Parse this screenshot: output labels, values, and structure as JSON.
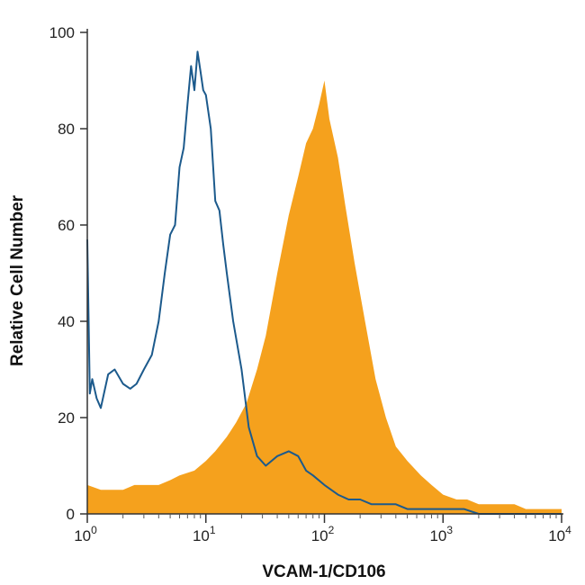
{
  "chart_data": {
    "type": "area",
    "xscale": "log",
    "xlim": [
      1,
      10000
    ],
    "ylim": [
      0,
      100
    ],
    "xlabel": "VCAM-1/CD106",
    "ylabel": "Relative Cell Number",
    "grid": false,
    "legend": "none",
    "y_ticks": [
      "0",
      "20",
      "40",
      "60",
      "80",
      "100"
    ],
    "x_ticks": [
      {
        "base": "10",
        "exp": "0"
      },
      {
        "base": "10",
        "exp": "1"
      },
      {
        "base": "10",
        "exp": "2"
      },
      {
        "base": "10",
        "exp": "3"
      },
      {
        "base": "10",
        "exp": "4"
      }
    ],
    "series": [
      {
        "style": "filled",
        "color": "#f5a11d",
        "x": [
          1,
          1.3,
          1.6,
          2,
          2.5,
          3,
          4,
          5,
          6,
          8,
          10,
          12,
          15,
          18,
          22,
          27,
          32,
          40,
          50,
          60,
          70,
          80,
          90,
          100,
          110,
          130,
          150,
          180,
          220,
          270,
          330,
          400,
          500,
          650,
          800,
          1000,
          1300,
          1600,
          2000,
          2500,
          3000,
          4000,
          5000,
          6000,
          7000,
          8000,
          10000
        ],
        "y": [
          6,
          5,
          5,
          5,
          6,
          6,
          6,
          7,
          8,
          9,
          11,
          13,
          16,
          19,
          23,
          30,
          37,
          50,
          62,
          70,
          77,
          80,
          85,
          90,
          82,
          74,
          64,
          52,
          40,
          28,
          20,
          14,
          11,
          8,
          6,
          4,
          3,
          3,
          2,
          2,
          2,
          2,
          1,
          1,
          1,
          1,
          1
        ]
      },
      {
        "style": "line",
        "color": "#1c5a8c",
        "x": [
          1,
          1.05,
          1.1,
          1.2,
          1.3,
          1.5,
          1.7,
          2,
          2.3,
          2.6,
          3,
          3.5,
          4,
          4.5,
          5,
          5.5,
          6,
          6.5,
          7,
          7.5,
          8,
          8.5,
          9,
          9.5,
          10,
          11,
          12,
          13,
          14,
          15,
          17,
          20,
          23,
          27,
          32,
          40,
          50,
          60,
          70,
          80,
          100,
          130,
          160,
          200,
          250,
          300,
          400,
          500,
          700,
          1000,
          1500,
          2000,
          3000,
          5000,
          7000,
          10000
        ],
        "y": [
          57,
          25,
          28,
          24,
          22,
          29,
          30,
          27,
          26,
          27,
          30,
          33,
          40,
          50,
          58,
          60,
          72,
          76,
          85,
          93,
          88,
          96,
          92,
          88,
          87,
          80,
          65,
          63,
          56,
          50,
          40,
          30,
          18,
          12,
          10,
          12,
          13,
          12,
          9,
          8,
          6,
          4,
          3,
          3,
          2,
          2,
          2,
          1,
          1,
          1,
          1,
          0,
          0,
          0,
          0,
          0
        ]
      }
    ]
  }
}
